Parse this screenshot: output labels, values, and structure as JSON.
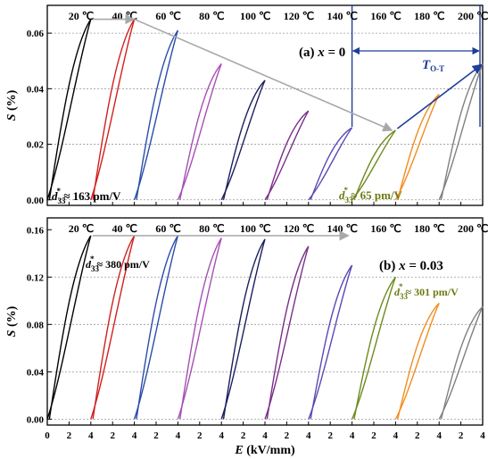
{
  "figure": {
    "xlabel_var": "E",
    "xlabel_unit": " (kV/mm)",
    "ylabel_var": "S",
    "ylabel_unit": " (%)",
    "x_tick_labels": [
      "0",
      "2",
      "4",
      "2",
      "4",
      "2",
      "4",
      "2",
      "4",
      "2",
      "4",
      "2",
      "4",
      "2",
      "4",
      "2",
      "4",
      "2",
      "4",
      "2",
      "4"
    ]
  },
  "chart_data": [
    {
      "type": "line",
      "panel_label": "(a) ",
      "panel_var": "x",
      "panel_value": " = 0",
      "temperatures": [
        "20 ℃",
        "40 ℃",
        "60 ℃",
        "80 ℃",
        "100 ℃",
        "120 ℃",
        "140 ℃",
        "160 ℃",
        "180 ℃",
        "200 ℃"
      ],
      "series_colors": [
        "#000000",
        "#d21f1f",
        "#2a4da8",
        "#a64fb4",
        "#1a1f5c",
        "#7a2f8a",
        "#5a4ab5",
        "#6e8a1e",
        "#f28c1e",
        "#808080"
      ],
      "series": [
        {
          "temp": "20 ℃",
          "emax_kv_mm": 4,
          "smax_pct": 0.065
        },
        {
          "temp": "40 ℃",
          "emax_kv_mm": 4,
          "smax_pct": 0.065
        },
        {
          "temp": "60 ℃",
          "emax_kv_mm": 4,
          "smax_pct": 0.061
        },
        {
          "temp": "80 ℃",
          "emax_kv_mm": 4,
          "smax_pct": 0.049
        },
        {
          "temp": "100 ℃",
          "emax_kv_mm": 4,
          "smax_pct": 0.043
        },
        {
          "temp": "120 ℃",
          "emax_kv_mm": 4,
          "smax_pct": 0.032
        },
        {
          "temp": "140 ℃",
          "emax_kv_mm": 4,
          "smax_pct": 0.026
        },
        {
          "temp": "160 ℃",
          "emax_kv_mm": 4,
          "smax_pct": 0.025
        },
        {
          "temp": "180 ℃",
          "emax_kv_mm": 4,
          "smax_pct": 0.038
        },
        {
          "temp": "200 ℃",
          "emax_kv_mm": 4,
          "smax_pct": 0.049
        }
      ],
      "yticks": [
        "0.00",
        "0.02",
        "0.04",
        "0.06"
      ],
      "ylim": [
        -0.002,
        0.07
      ],
      "grid_y": [
        0.0,
        0.02,
        0.04,
        0.06
      ],
      "trend_arrow": [
        {
          "seg": 0,
          "s": 0.065
        },
        {
          "seg": 1,
          "s": 0.065
        },
        {
          "seg": 7,
          "s": 0.025
        }
      ],
      "up_arrow": [
        {
          "seg": 7,
          "s": 0.025
        },
        {
          "seg": 9,
          "s": 0.049
        }
      ],
      "annotations": [
        {
          "d_value": " ≈ 163 pm/V",
          "color": "#000000"
        },
        {
          "d_value": " ≈ 65 pm/V",
          "color": "#6e7a10"
        }
      ],
      "t_ot_label": "O-T",
      "t_ot_range_seg": [
        7,
        9
      ]
    },
    {
      "type": "line",
      "panel_label": "(b) ",
      "panel_var": "x",
      "panel_value": " = 0.03",
      "temperatures": [
        "20 ℃",
        "40 ℃",
        "60 ℃",
        "80 ℃",
        "100 ℃",
        "120 ℃",
        "140 ℃",
        "160 ℃",
        "180 ℃",
        "200 ℃"
      ],
      "series_colors": [
        "#000000",
        "#d21f1f",
        "#2a4da8",
        "#a64fb4",
        "#1a1f5c",
        "#7a2f8a",
        "#5a4ab5",
        "#6e8a1e",
        "#f28c1e",
        "#808080"
      ],
      "series": [
        {
          "temp": "20 ℃",
          "emax_kv_mm": 4,
          "smax_pct": 0.155
        },
        {
          "temp": "40 ℃",
          "emax_kv_mm": 4,
          "smax_pct": 0.155
        },
        {
          "temp": "60 ℃",
          "emax_kv_mm": 4,
          "smax_pct": 0.155
        },
        {
          "temp": "80 ℃",
          "emax_kv_mm": 4,
          "smax_pct": 0.153
        },
        {
          "temp": "100 ℃",
          "emax_kv_mm": 4,
          "smax_pct": 0.152
        },
        {
          "temp": "120 ℃",
          "emax_kv_mm": 4,
          "smax_pct": 0.146
        },
        {
          "temp": "140 ℃",
          "emax_kv_mm": 4,
          "smax_pct": 0.13
        },
        {
          "temp": "160 ℃",
          "emax_kv_mm": 4,
          "smax_pct": 0.12
        },
        {
          "temp": "180 ℃",
          "emax_kv_mm": 4,
          "smax_pct": 0.098
        },
        {
          "temp": "200 ℃",
          "emax_kv_mm": 4,
          "smax_pct": 0.095
        }
      ],
      "yticks": [
        "0.00",
        "0.04",
        "0.08",
        "0.12",
        "0.16"
      ],
      "ylim": [
        -0.005,
        0.17
      ],
      "grid_y": [
        0.0,
        0.04,
        0.08,
        0.12
      ],
      "trend_arrow": [
        {
          "seg": 0,
          "s": 0.155
        },
        {
          "seg": 6,
          "s": 0.155
        }
      ],
      "annotations": [
        {
          "d_value": " ≈ 380 pm/V",
          "color": "#000000"
        },
        {
          "d_value": " ≈ 301 pm/V",
          "color": "#6e7a10"
        }
      ]
    }
  ]
}
